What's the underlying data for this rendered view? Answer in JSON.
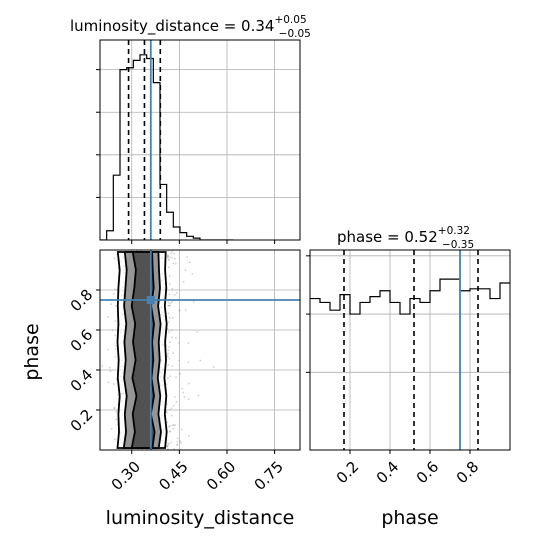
{
  "chart_data": {
    "type": "corner",
    "params": [
      "luminosity_distance",
      "phase"
    ],
    "truth": {
      "luminosity_distance": 0.36,
      "phase": 0.75
    },
    "colors": {
      "truth": "#4682b4",
      "hist": "#000000",
      "grid": "#b0b0b0"
    },
    "titles": {
      "luminosity_distance": {
        "prefix": "luminosity_distance = ",
        "value": "0.34",
        "plus": "+0.05",
        "minus": "−0.05"
      },
      "phase": {
        "prefix": "phase = ",
        "value": "0.52",
        "plus": "+0.32",
        "minus": "−0.35"
      }
    },
    "luminosity_distance": {
      "range": [
        0.2,
        0.83
      ],
      "ticks": [
        0.3,
        0.45,
        0.6,
        0.75
      ],
      "tick_labels": [
        "0.30",
        "0.45",
        "0.60",
        "0.75"
      ],
      "quantiles": [
        0.29,
        0.34,
        0.39
      ],
      "hist_edges": [
        0.2,
        0.221,
        0.242,
        0.263,
        0.284,
        0.305,
        0.326,
        0.347,
        0.368,
        0.389,
        0.41,
        0.431,
        0.452,
        0.473,
        0.494,
        0.515,
        0.536,
        0.557,
        0.578,
        0.599,
        0.62
      ],
      "hist_counts": [
        0.0,
        0.05,
        0.35,
        0.92,
        0.93,
        0.97,
        1.0,
        0.98,
        0.85,
        0.3,
        0.15,
        0.07,
        0.04,
        0.02,
        0.01,
        0.0,
        0.0,
        0.0,
        0.0,
        0.0
      ]
    },
    "phase": {
      "range": [
        0.0,
        1.0
      ],
      "ticks": [
        0.2,
        0.4,
        0.6,
        0.8
      ],
      "tick_labels": [
        "0.2",
        "0.4",
        "0.6",
        "0.8"
      ],
      "quantiles": [
        0.17,
        0.52,
        0.84
      ],
      "hist_edges": [
        0.0,
        0.05,
        0.1,
        0.15,
        0.2,
        0.25,
        0.3,
        0.35,
        0.4,
        0.45,
        0.5,
        0.55,
        0.6,
        0.65,
        0.7,
        0.75,
        0.8,
        0.85,
        0.9,
        0.95,
        1.0
      ],
      "hist_counts": [
        0.78,
        0.76,
        0.72,
        0.8,
        0.7,
        0.76,
        0.79,
        0.82,
        0.76,
        0.7,
        0.78,
        0.76,
        0.82,
        0.88,
        0.88,
        0.82,
        0.83,
        0.83,
        0.78,
        0.86
      ],
      "hist_ylim": [
        0.0,
        1.03
      ],
      "hist_yticks": [
        0.4,
        0.7,
        1.0
      ]
    },
    "contour_levels": [
      {
        "fill": "#ffffff",
        "x": [
          0.255,
          0.26,
          0.258,
          0.262,
          0.256,
          0.259,
          0.255,
          0.258,
          0.256,
          0.258,
          0.262,
          0.256
        ],
        "x2": [
          0.405,
          0.41,
          0.404,
          0.409,
          0.403,
          0.408,
          0.405,
          0.41,
          0.404,
          0.409,
          0.405,
          0.407
        ]
      },
      {
        "fill": "#8c8c8c",
        "x": [
          0.275,
          0.282,
          0.278,
          0.284,
          0.276,
          0.281,
          0.277,
          0.283,
          0.276,
          0.28,
          0.284,
          0.278
        ],
        "x2": [
          0.385,
          0.392,
          0.384,
          0.39,
          0.382,
          0.388,
          0.385,
          0.391,
          0.383,
          0.389,
          0.386,
          0.384
        ]
      },
      {
        "fill": "#4a4a4a",
        "x": [
          0.3,
          0.31,
          0.303,
          0.315,
          0.302,
          0.312,
          0.304,
          0.311,
          0.3,
          0.308,
          0.313,
          0.303
        ],
        "x2": [
          0.365,
          0.372,
          0.36,
          0.37,
          0.362,
          0.368,
          0.364,
          0.37,
          0.361,
          0.369,
          0.366,
          0.364
        ]
      }
    ],
    "contour_y": [
      0.01,
      0.09,
      0.18,
      0.27,
      0.36,
      0.45,
      0.54,
      0.63,
      0.72,
      0.81,
      0.9,
      0.99
    ]
  },
  "axes": {
    "x_label_1": "luminosity_distance",
    "x_label_2": "phase",
    "y_label": "phase"
  }
}
